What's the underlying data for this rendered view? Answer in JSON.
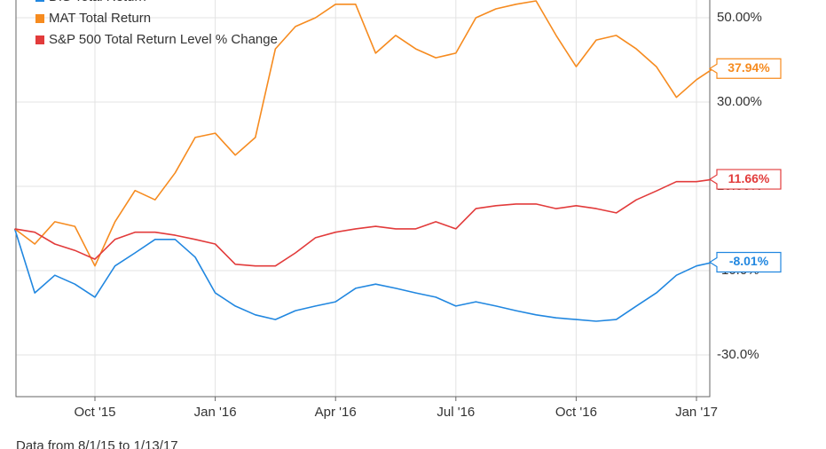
{
  "chart_data": {
    "type": "line",
    "footnote": "Data from 8/1/15 to 1/13/17",
    "x": [
      0,
      0.5,
      1,
      1.5,
      2,
      2.5,
      3,
      3.5,
      4,
      4.5,
      5,
      5.5,
      6,
      6.5,
      7,
      7.5,
      8,
      8.5,
      9,
      9.5,
      10,
      10.5,
      11,
      11.5,
      12,
      12.5,
      13,
      13.5,
      14,
      14.5,
      15,
      15.5,
      16,
      16.5,
      17,
      17.42
    ],
    "xlim": [
      0,
      17.42
    ],
    "xticks": [
      {
        "value": 2,
        "label": "Oct '15"
      },
      {
        "value": 5,
        "label": "Jan '16"
      },
      {
        "value": 8,
        "label": "Apr '16"
      },
      {
        "value": 11,
        "label": "Jul '16"
      },
      {
        "value": 14,
        "label": "Oct '16"
      },
      {
        "value": 17,
        "label": "Jan '17"
      }
    ],
    "ylim": [
      -39.9,
      54.2
    ],
    "yticks": [
      {
        "value": 50,
        "label": "50.00%"
      },
      {
        "value": 30,
        "label": "30.00%"
      },
      {
        "value": 10,
        "label": "10.00%"
      },
      {
        "value": -10,
        "label": "-10.0%"
      },
      {
        "value": -30,
        "label": "-30.0%"
      }
    ],
    "grid": true,
    "series": [
      {
        "name": "DIS Total Return",
        "color": "#2187e0",
        "values": [
          -0.1,
          -15.3,
          -11.1,
          -13.2,
          -16.3,
          -8.9,
          -5.8,
          -2.6,
          -2.6,
          -6.8,
          -15.3,
          -18.4,
          -20.5,
          -21.6,
          -19.5,
          -18.4,
          -17.4,
          -14.2,
          -13.2,
          -14.2,
          -15.3,
          -16.3,
          -18.4,
          -17.4,
          -18.4,
          -19.5,
          -20.5,
          -21.2,
          -21.6,
          -22.0,
          -21.6,
          -18.4,
          -15.3,
          -11.1,
          -8.9,
          -8.01
        ],
        "value_labels": [
          null,
          null,
          null,
          null,
          null,
          null,
          null,
          null,
          null,
          null,
          null,
          null,
          null,
          null,
          null,
          null,
          null,
          null,
          null,
          null,
          null,
          null,
          null,
          null,
          null,
          null,
          null,
          null,
          null,
          null,
          null,
          null,
          null,
          null,
          null,
          "-8.01%"
        ]
      },
      {
        "name": "MAT Total Return",
        "color": "#f68b1f",
        "values": [
          -0.1,
          -3.7,
          1.6,
          0.5,
          -8.9,
          1.6,
          9.0,
          6.8,
          13.2,
          21.6,
          22.6,
          17.4,
          21.6,
          42.6,
          47.9,
          50.0,
          53.2,
          53.2,
          41.6,
          45.8,
          42.6,
          40.5,
          41.6,
          50.0,
          52.1,
          53.2,
          54.0,
          45.8,
          38.4,
          44.7,
          45.8,
          42.6,
          38.4,
          31.1,
          35.3,
          37.94
        ],
        "value_labels": [
          null,
          null,
          null,
          null,
          null,
          null,
          null,
          null,
          null,
          null,
          null,
          null,
          null,
          null,
          null,
          null,
          null,
          null,
          null,
          null,
          null,
          null,
          null,
          null,
          null,
          null,
          null,
          null,
          null,
          null,
          null,
          null,
          null,
          null,
          null,
          "37.94%"
        ]
      },
      {
        "name": "S&P 500 Total Return Level % Change",
        "color": "#e23b3b",
        "values": [
          -0.1,
          -0.9,
          -3.7,
          -5.2,
          -7.3,
          -2.6,
          -0.9,
          -0.9,
          -1.6,
          -2.6,
          -3.7,
          -8.5,
          -8.9,
          -8.9,
          -5.8,
          -2.2,
          -0.9,
          -0.1,
          0.5,
          -0.1,
          -0.1,
          1.6,
          -0.1,
          4.7,
          5.4,
          5.8,
          5.8,
          4.7,
          5.4,
          4.7,
          3.7,
          6.8,
          8.9,
          11.1,
          11.1,
          11.66
        ],
        "value_labels": [
          null,
          null,
          null,
          null,
          null,
          null,
          null,
          null,
          null,
          null,
          null,
          null,
          null,
          null,
          null,
          null,
          null,
          null,
          null,
          null,
          null,
          null,
          null,
          null,
          null,
          null,
          null,
          null,
          null,
          null,
          null,
          null,
          null,
          null,
          null,
          "11.66%"
        ]
      }
    ]
  }
}
